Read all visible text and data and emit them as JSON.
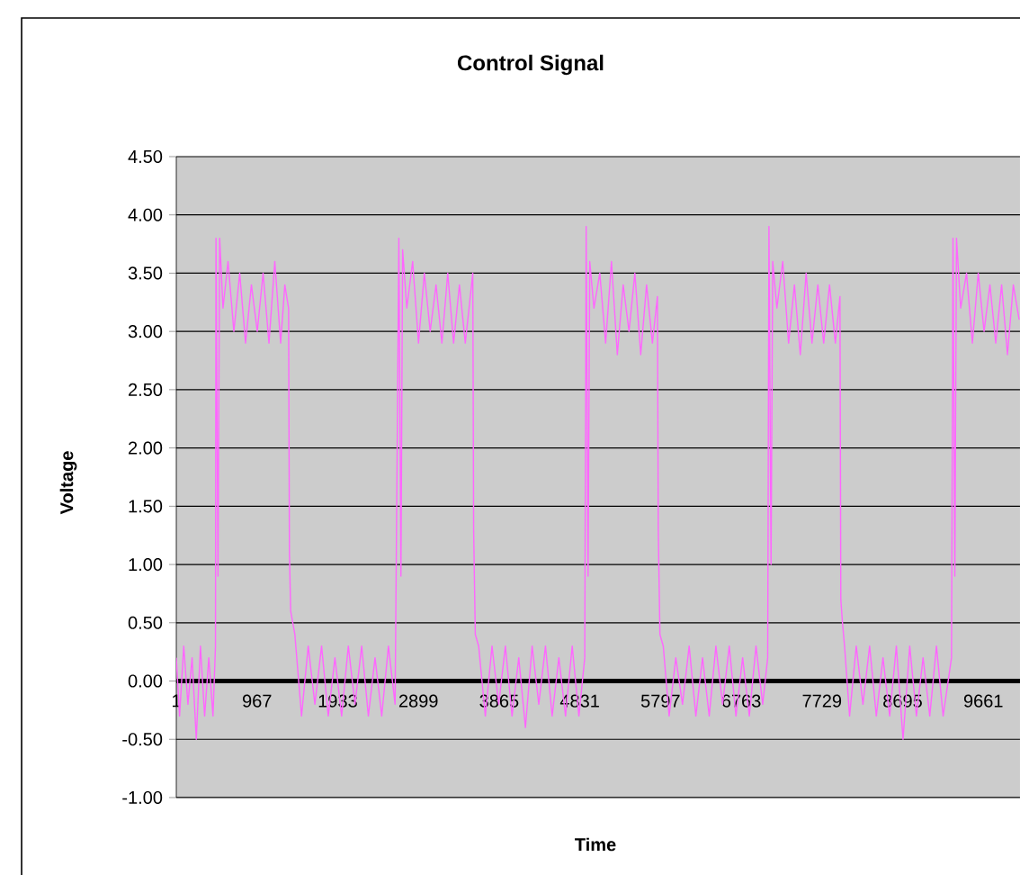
{
  "chart_data": {
    "type": "line",
    "title": "Control Signal",
    "xlabel": "Time",
    "ylabel": "Voltage",
    "xlim": [
      1,
      10100
    ],
    "xticks": [
      1,
      967,
      1933,
      2899,
      3865,
      4831,
      5797,
      6763,
      7729,
      8695,
      9661
    ],
    "ylim": [
      -1,
      4.5
    ],
    "yticks": [
      {
        "value": -1,
        "label": "-1.00"
      },
      {
        "value": -0.5,
        "label": "-0.50"
      },
      {
        "value": 0,
        "label": "0.00"
      },
      {
        "value": 0.5,
        "label": "0.50"
      },
      {
        "value": 1,
        "label": "1.00"
      },
      {
        "value": 1.5,
        "label": "1.50"
      },
      {
        "value": 2,
        "label": "2.00"
      },
      {
        "value": 2.5,
        "label": "2.50"
      },
      {
        "value": 3,
        "label": "3.00"
      },
      {
        "value": 3.5,
        "label": "3.50"
      },
      {
        "value": 4,
        "label": "4.00"
      },
      {
        "value": 4.5,
        "label": "4.50"
      }
    ],
    "grid": "y",
    "marker": "none",
    "line_style": "solid",
    "series": [
      {
        "color": "#ff66ff",
        "x": [
          1,
          40,
          90,
          140,
          190,
          240,
          290,
          340,
          390,
          440,
          470,
          476,
          500,
          520,
          560,
          620,
          690,
          760,
          830,
          900,
          970,
          1040,
          1110,
          1180,
          1250,
          1300,
          1345,
          1355,
          1370,
          1420,
          1500,
          1580,
          1660,
          1740,
          1820,
          1900,
          1980,
          2060,
          2140,
          2220,
          2300,
          2380,
          2460,
          2540,
          2620,
          2665,
          2690,
          2710,
          2760,
          2830,
          2900,
          2970,
          3040,
          3110,
          3180,
          3250,
          3320,
          3390,
          3460,
          3550,
          3560,
          3580,
          3620,
          3700,
          3780,
          3860,
          3940,
          4020,
          4100,
          4180,
          4260,
          4340,
          4420,
          4500,
          4580,
          4660,
          4740,
          4820,
          4890,
          4907,
          4930,
          4950,
          5000,
          5070,
          5140,
          5210,
          5280,
          5350,
          5420,
          5490,
          5560,
          5630,
          5700,
          5760,
          5770,
          5790,
          5830,
          5900,
          5980,
          6060,
          6140,
          6220,
          6300,
          6380,
          6460,
          6540,
          6620,
          6700,
          6780,
          6860,
          6940,
          7020,
          7080,
          7095,
          7120,
          7140,
          7190,
          7260,
          7330,
          7400,
          7470,
          7540,
          7610,
          7680,
          7750,
          7820,
          7890,
          7945,
          7955,
          7975,
          8000,
          8060,
          8140,
          8220,
          8300,
          8380,
          8460,
          8540,
          8620,
          8700,
          8780,
          8860,
          8940,
          9020,
          9100,
          9180,
          9280,
          9298,
          9320,
          9340,
          9390,
          9460,
          9530,
          9600,
          9670,
          9740,
          9810,
          9880,
          9950,
          10020,
          10090
        ],
        "values": [
          0.2,
          -0.3,
          0.3,
          -0.2,
          0.2,
          -0.5,
          0.3,
          -0.3,
          0.2,
          -0.3,
          0.3,
          3.8,
          0.9,
          3.8,
          3.2,
          3.6,
          3.0,
          3.5,
          2.9,
          3.4,
          3.0,
          3.5,
          2.9,
          3.6,
          2.9,
          3.4,
          3.2,
          1.1,
          0.6,
          0.4,
          -0.3,
          0.3,
          -0.2,
          0.3,
          -0.3,
          0.2,
          -0.3,
          0.3,
          -0.2,
          0.3,
          -0.3,
          0.2,
          -0.3,
          0.3,
          -0.2,
          3.8,
          0.9,
          3.7,
          3.2,
          3.6,
          2.9,
          3.5,
          3.0,
          3.4,
          2.9,
          3.5,
          2.9,
          3.4,
          2.9,
          3.5,
          1.3,
          0.4,
          0.3,
          -0.3,
          0.3,
          -0.2,
          0.3,
          -0.3,
          0.2,
          -0.4,
          0.3,
          -0.2,
          0.3,
          -0.3,
          0.2,
          -0.3,
          0.3,
          -0.3,
          0.2,
          3.9,
          0.9,
          3.6,
          3.2,
          3.5,
          2.9,
          3.6,
          2.8,
          3.4,
          3.0,
          3.5,
          2.8,
          3.4,
          2.9,
          3.3,
          1.3,
          0.4,
          0.3,
          -0.3,
          0.2,
          -0.2,
          0.3,
          -0.3,
          0.2,
          -0.3,
          0.3,
          -0.2,
          0.3,
          -0.3,
          0.2,
          -0.3,
          0.3,
          -0.2,
          0.2,
          3.9,
          1.0,
          3.6,
          3.2,
          3.6,
          2.9,
          3.4,
          2.8,
          3.5,
          2.9,
          3.4,
          2.9,
          3.4,
          2.9,
          3.3,
          0.7,
          0.5,
          0.3,
          -0.3,
          0.3,
          -0.2,
          0.3,
          -0.3,
          0.2,
          -0.3,
          0.3,
          -0.5,
          0.3,
          -0.3,
          0.2,
          -0.3,
          0.3,
          -0.3,
          0.2,
          3.8,
          0.9,
          3.8,
          3.2,
          3.5,
          2.9,
          3.5,
          3.0,
          3.4,
          2.9,
          3.4,
          2.8,
          3.4,
          3.1
        ]
      }
    ]
  }
}
